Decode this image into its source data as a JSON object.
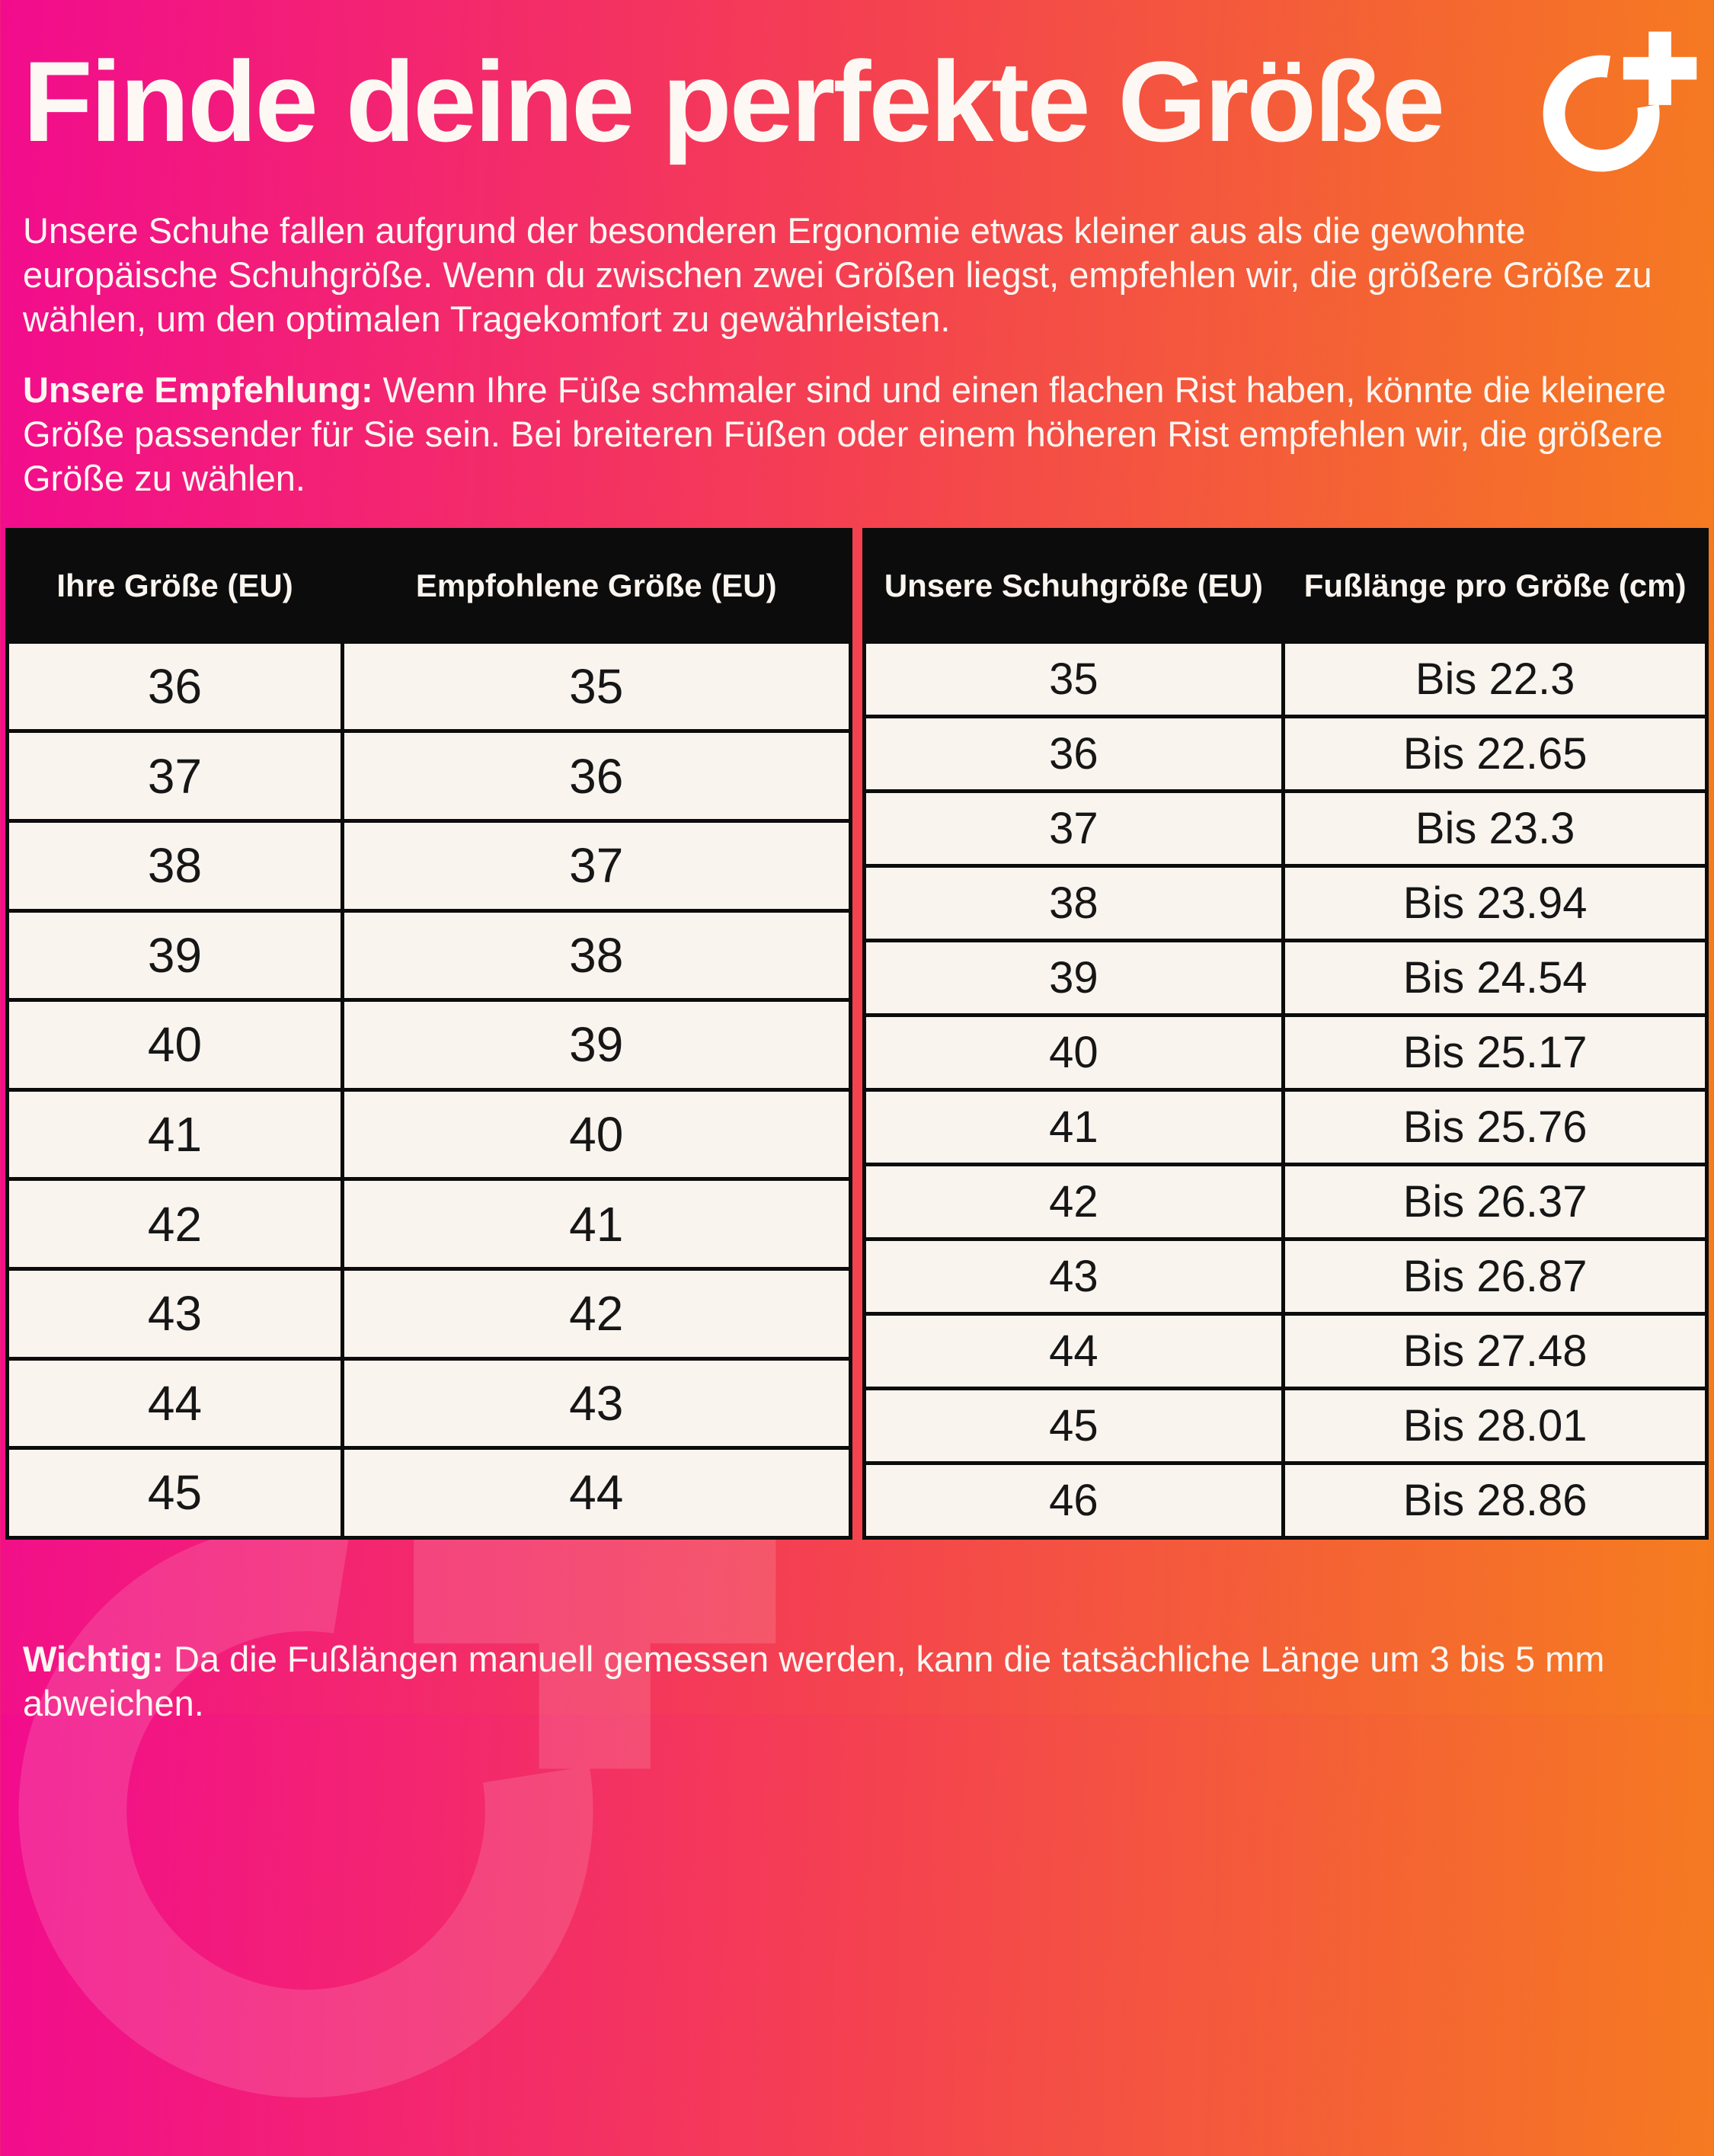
{
  "page": {
    "title": "Finde deine perfekte Größe",
    "intro": "Unsere Schuhe fallen aufgrund der besonderen Ergonomie etwas kleiner aus als die gewohnte europäische Schuhgröße. Wenn du zwischen zwei Größen liegst, empfehlen wir, die größere Größe zu wählen, um den optimalen Tragekomfort zu gewährleisten.",
    "recommendation_label": "Unsere Empfehlung:",
    "recommendation_text": "Wenn Ihre Füße schmaler sind und einen flachen Rist haben, könnte die kleinere Größe passender für Sie sein. Bei breiteren Füßen oder einem höheren Rist empfehlen wir, die größere Größe zu wählen.",
    "note_label": "Wichtig:",
    "note_text": "Da die Fußlängen manuell gemessen werden, kann die tatsächliche Länge um 3 bis 5 mm abweichen."
  },
  "logo": {
    "icon": "circle-plus-logo",
    "color": "#ffffff"
  },
  "size_table": {
    "headers": [
      "Ihre Größe (EU)",
      "Empfohlene Größe (EU)"
    ],
    "rows": [
      [
        "36",
        "35"
      ],
      [
        "37",
        "36"
      ],
      [
        "38",
        "37"
      ],
      [
        "39",
        "38"
      ],
      [
        "40",
        "39"
      ],
      [
        "41",
        "40"
      ],
      [
        "42",
        "41"
      ],
      [
        "43",
        "42"
      ],
      [
        "44",
        "43"
      ],
      [
        "45",
        "44"
      ]
    ]
  },
  "length_table": {
    "headers": [
      "Unsere Schuhgröße (EU)",
      "Fußlänge pro Größe (cm)"
    ],
    "rows": [
      [
        "35",
        "Bis 22.3"
      ],
      [
        "36",
        "Bis 22.65"
      ],
      [
        "37",
        "Bis 23.3"
      ],
      [
        "38",
        "Bis 23.94"
      ],
      [
        "39",
        "Bis 24.54"
      ],
      [
        "40",
        "Bis 25.17"
      ],
      [
        "41",
        "Bis 25.76"
      ],
      [
        "42",
        "Bis 26.37"
      ],
      [
        "43",
        "Bis 26.87"
      ],
      [
        "44",
        "Bis 27.48"
      ],
      [
        "45",
        "Bis 28.01"
      ],
      [
        "46",
        "Bis 28.86"
      ]
    ]
  },
  "colors": {
    "gradient_start": "#f20c8d",
    "gradient_mid": "#f4424f",
    "gradient_end": "#f57d1e",
    "header_bg": "#0c0c0c",
    "header_text": "#fbf5f0",
    "cell_bg": "#faf4ef",
    "cell_text": "#161616",
    "body_text": "#fdf6f1"
  }
}
